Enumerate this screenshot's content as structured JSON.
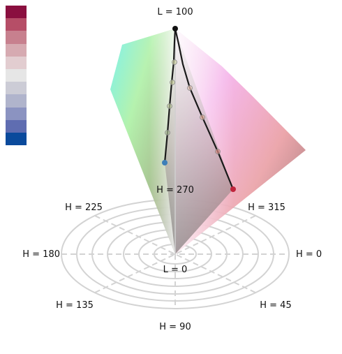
{
  "palette": {
    "colors": [
      "#8a0f3f",
      "#b64e67",
      "#c7808e",
      "#d6aab1",
      "#e2cdd0",
      "#e6e6e6",
      "#ccccd6",
      "#b0b4cc",
      "#8b93c1",
      "#5f6db1",
      "#0a4a9c"
    ]
  },
  "labels": {
    "l_top": "L = 100",
    "l_bottom": "L = 0",
    "h0": "H = 0",
    "h45": "H = 45",
    "h90": "H = 90",
    "h135": "H = 135",
    "h180": "H = 180",
    "h225": "H = 225",
    "h270": "H = 270",
    "h315": "H = 315"
  },
  "paths": {
    "blue_end_color": "#3d7fb8",
    "red_end_color": "#c0243b",
    "top_color": "#111111"
  }
}
